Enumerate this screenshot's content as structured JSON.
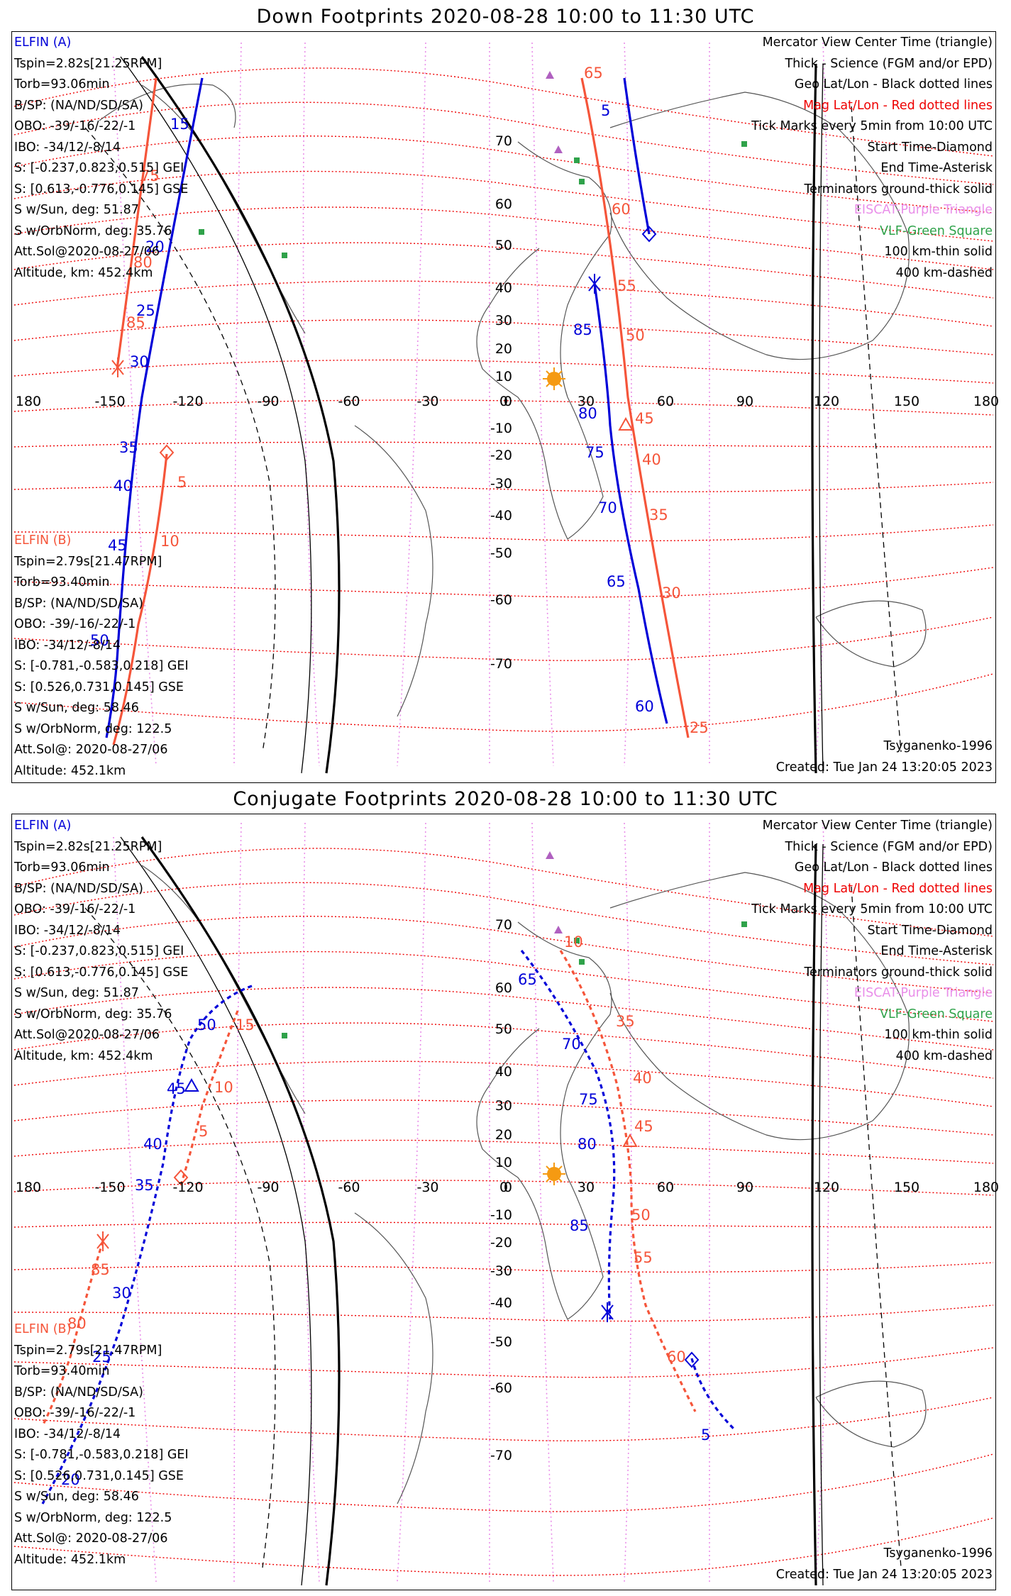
{
  "panels": [
    {
      "title": "Down Footprints 2020-08-28 10:00 to 11:30 UTC",
      "elfin_a": {
        "label": "ELFIN (A)",
        "lines": [
          "Tspin=2.82s[21.25RPM]",
          "Torb=93.06min",
          "B/SP: (NA/ND/SD/SA)",
          "OBO: -39/-16/-22/-1",
          "IBO: -34/12/-8/14",
          "S: [-0.237,0.823,0.515] GEI",
          "S: [0.613,-0.776,0.145] GSE",
          "S w/Sun, deg: 51.87",
          "S w/OrbNorm, deg: 35.76",
          "Att.Sol@2020-08-27/06",
          "Altitude, km: 452.4km"
        ]
      },
      "elfin_b": {
        "label": "ELFIN (B)",
        "lines": [
          "Tspin=2.79s[21.47RPM]",
          "Torb=93.40min",
          "B/SP: (NA/ND/SD/SA)",
          "OBO: -39/-16/-22/-1",
          "IBO: -34/12/-8/14",
          "S: [-0.781,-0.583,0.218] GEI",
          "S: [0.526,0.731,0.145] GSE",
          "S w/Sun, deg: 58.46",
          "S w/OrbNorm, deg: 122.5",
          "Att.Sol@: 2020-08-27/06",
          "Altitude: 452.1km"
        ]
      },
      "track_labels": {
        "a": [
          "15",
          "20",
          "25",
          "30",
          "35",
          "40",
          "45",
          "50",
          "5",
          "85",
          "80",
          "75",
          "70",
          "65",
          "60"
        ],
        "b": [
          "75",
          "80",
          "85",
          "5",
          "10",
          "65",
          "60",
          "55",
          "50",
          "45",
          "40",
          "35",
          "30",
          "25"
        ]
      }
    },
    {
      "title": "Conjugate Footprints 2020-08-28 10:00 to 11:30 UTC",
      "elfin_a": {
        "label": "ELFIN (A)",
        "lines": [
          "Tspin=2.82s[21.25RPM]",
          "Torb=93.06min",
          "B/SP: (NA/ND/SD/SA)",
          "OBO: -39/-16/-22/-1",
          "IBO: -34/12/-8/14",
          "S: [-0.237,0.823,0.515] GEI",
          "S: [0.613,-0.776,0.145] GSE",
          "S w/Sun, deg: 51.87",
          "S w/OrbNorm, deg: 35.76",
          "Att.Sol@2020-08-27/06",
          "Altitude, km: 452.4km"
        ]
      },
      "elfin_b": {
        "label": "ELFIN (B)",
        "lines": [
          "Tspin=2.79s[21.47RPM]",
          "Torb=93.40min",
          "B/SP: (NA/ND/SD/SA)",
          "OBO: -39/-16/-22/-1",
          "IBO: -34/12/-8/14",
          "S: [-0.781,-0.583,0.218] GEI",
          "S: [0.526,0.731,0.145] GSE",
          "S w/Sun, deg: 58.46",
          "S w/OrbNorm, deg: 122.5",
          "Att.Sol@: 2020-08-27/06",
          "Altitude: 452.1km"
        ]
      },
      "track_labels": {
        "a": [
          "20",
          "25",
          "30",
          "35",
          "40",
          "45",
          "50",
          "65",
          "70",
          "75",
          "80",
          "85",
          "5"
        ],
        "b": [
          "80",
          "85",
          "5",
          "10",
          "15",
          "10",
          "35",
          "40",
          "45",
          "50",
          "55",
          "60"
        ]
      }
    }
  ],
  "legend": [
    {
      "text": "Mercator View Center Time (triangle)",
      "color": "black"
    },
    {
      "text": "Thick - Science (FGM and/or EPD)",
      "color": "black"
    },
    {
      "text": "Geo Lat/Lon - Black dotted lines",
      "color": "black"
    },
    {
      "text": "Mag Lat/Lon - Red dotted lines",
      "color": "red"
    },
    {
      "text": "Tick Marks every 5min from 10:00 UTC",
      "color": "black"
    },
    {
      "text": "Start Time-Diamond",
      "color": "black"
    },
    {
      "text": "End Time-Asterisk",
      "color": "black"
    },
    {
      "text": "Terminators ground-thick solid",
      "color": "black"
    },
    {
      "text": "EISCAT-Purple Triangle",
      "color": "violet"
    },
    {
      "text": "VLF-Green Square",
      "color": "green"
    },
    {
      "text": "100 km-thin solid",
      "color": "black"
    },
    {
      "text": "400 km-dashed",
      "color": "black"
    }
  ],
  "footer": {
    "model": "Tsyganenko-1996",
    "created": "Created: Tue Jan 24 13:20:05 2023"
  },
  "lon_ticks": [
    "180",
    "-150",
    "-120",
    "-90",
    "-60",
    "-30",
    "0",
    "30",
    "60",
    "90",
    "120",
    "150",
    "180"
  ],
  "lat_ticks_top": [
    "70",
    "60",
    "50",
    "40",
    "30",
    "20",
    "10",
    "0",
    "-10",
    "-20",
    "-30",
    "-40",
    "-50",
    "-60",
    "-70"
  ],
  "lat_ticks_bottom": [
    "70",
    "60",
    "50",
    "40",
    "30",
    "20",
    "10",
    "0",
    "-10",
    "-20",
    "-30",
    "-40",
    "-50",
    "-60",
    "-70"
  ],
  "colors": {
    "elfin_a": "#0000d8",
    "elfin_b": "#f5553a",
    "mag_grid": "#ee0000",
    "geo_grid": "#e98ee9",
    "eiscat": "#b060c0",
    "vlf": "#2fa24a"
  }
}
